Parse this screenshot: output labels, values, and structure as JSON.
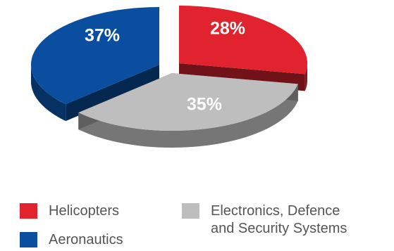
{
  "chart_data": {
    "type": "pie",
    "style": "3d-exploded",
    "slices": [
      {
        "label": "Helicopters",
        "value": 28,
        "value_label": "28%",
        "color": "#e0232e"
      },
      {
        "label": "Electronics, Defence and Security Systems",
        "value": 35,
        "value_label": "35%",
        "color": "#bebebe"
      },
      {
        "label": "Aeronautics",
        "value": 37,
        "value_label": "37%",
        "color": "#0a4f9f"
      }
    ],
    "legend": {
      "placement": "bottom",
      "items": [
        {
          "label": "Helicopters",
          "color": "#e0232e"
        },
        {
          "label": "Aeronautics",
          "color": "#0a4f9f"
        },
        {
          "label": "Electronics, Defence\nand Security Systems",
          "color": "#bebebe"
        }
      ]
    },
    "value_label_color": "#ffffff"
  }
}
